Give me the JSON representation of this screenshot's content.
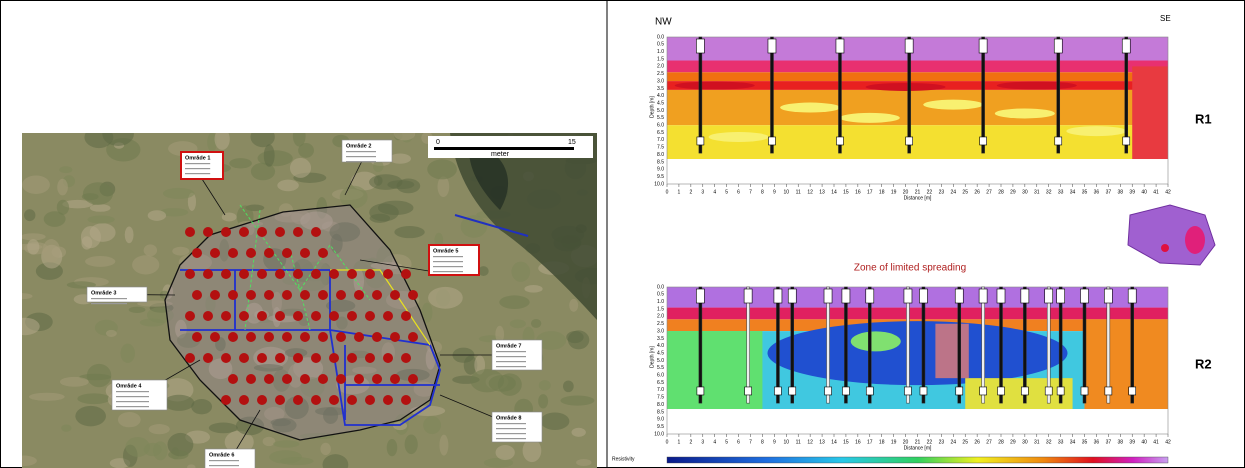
{
  "map": {
    "scale": {
      "start": "0",
      "end": "15",
      "unit": "meter"
    },
    "areas": [
      {
        "label": "Område 1"
      },
      {
        "label": "Område 2"
      },
      {
        "label": "Område 3"
      },
      {
        "label": "Område 4"
      },
      {
        "label": "Område 5"
      },
      {
        "label": "Område 6"
      },
      {
        "label": "Område 7"
      },
      {
        "label": "Område 8"
      }
    ]
  },
  "sections": {
    "nw": "NW",
    "se": "SE",
    "depth_label": "Depth [m]",
    "distance_label": "Distance [m]",
    "depth_ticks": [
      "0.0",
      "0.5",
      "1.0",
      "1.5",
      "2.0",
      "2.5",
      "3.0",
      "3.5",
      "4.0",
      "4.5",
      "5.0",
      "5.5",
      "6.0",
      "6.5",
      "7.0",
      "7.5",
      "8.0",
      "8.5",
      "9.0",
      "9.5",
      "10.0"
    ],
    "distance_ticks": [
      "0",
      "1",
      "2",
      "3",
      "4",
      "5",
      "6",
      "7",
      "8",
      "9",
      "10",
      "11",
      "12",
      "13",
      "14",
      "15",
      "16",
      "17",
      "18",
      "19",
      "20",
      "21",
      "22",
      "23",
      "24",
      "25",
      "26",
      "27",
      "28",
      "29",
      "30",
      "31",
      "32",
      "33",
      "34",
      "35",
      "36",
      "37",
      "38",
      "39",
      "40",
      "41",
      "42"
    ],
    "profiles": [
      {
        "name": "R1"
      },
      {
        "name": "R2"
      }
    ],
    "annotation": "Zone of limited spreading",
    "legend_label": "Resistivity"
  }
}
